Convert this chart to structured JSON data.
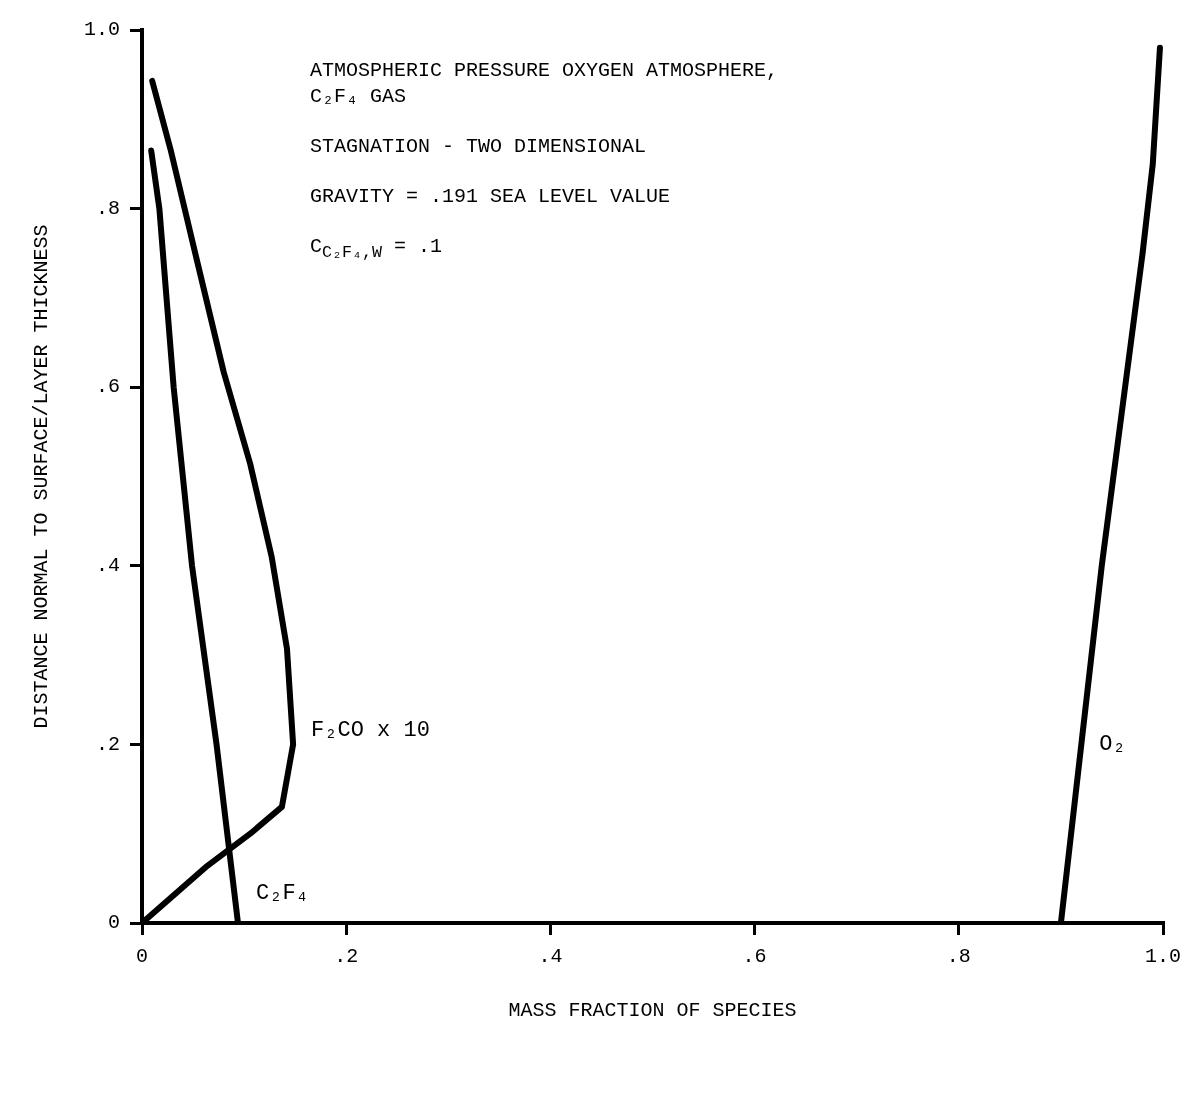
{
  "chart_data": {
    "type": "line",
    "xlabel": "MASS FRACTION OF SPECIES",
    "ylabel": "DISTANCE NORMAL TO SURFACE/LAYER THICKNESS",
    "xlim": [
      0,
      1
    ],
    "ylim": [
      0,
      1
    ],
    "xticks": [
      0,
      {
        "value": 0.2,
        "label": ".2"
      },
      {
        "value": 0.4,
        "label": ".4"
      },
      {
        "value": 0.6,
        "label": ".6"
      },
      {
        "value": 0.8,
        "label": ".8"
      },
      {
        "value": 1,
        "label": "1.0"
      }
    ],
    "yticks": [
      0,
      {
        "value": 0.2,
        "label": ".2"
      },
      {
        "value": 0.4,
        "label": ".4"
      },
      {
        "value": 0.6,
        "label": ".6"
      },
      {
        "value": 0.8,
        "label": ".8"
      },
      {
        "value": 1,
        "label": "1.0"
      }
    ],
    "grid": false,
    "legend": false,
    "marker": "none",
    "line_style": "solid",
    "series": [
      {
        "name": "C₂F₄",
        "color": "#000000",
        "x": [
          0.094,
          0.073,
          0.049,
          0.031,
          0.017,
          0.009
        ],
        "values": [
          0,
          0.2,
          0.4,
          0.6,
          0.8,
          0.865
        ]
      },
      {
        "name": "F₂CO x 10",
        "color": "#000000",
        "x": [
          0,
          0.064,
          0.106,
          0.137,
          0.148,
          0.142,
          0.127,
          0.106,
          0.08,
          0.054,
          0.028,
          0.01
        ],
        "values": [
          0,
          0.064,
          0.1,
          0.13,
          0.2,
          0.307,
          0.41,
          0.514,
          0.617,
          0.741,
          0.866,
          0.943
        ]
      },
      {
        "name": "O₂",
        "color": "#000000",
        "x": [
          0.9,
          0.94,
          0.98,
          0.99,
          0.997
        ],
        "values": [
          0,
          0.4,
          0.75,
          0.85,
          0.98
        ]
      }
    ],
    "annotations": [
      "ATMOSPHERIC PRESSURE OXYGEN ATMOSPHERE,\nC₂F₄ GAS",
      "STAGNATION - TWO DIMENSIONAL",
      "GRAVITY =  .191 SEA LEVEL VALUE",
      "C$_{C₂F₄,W}$ =  .1"
    ]
  }
}
